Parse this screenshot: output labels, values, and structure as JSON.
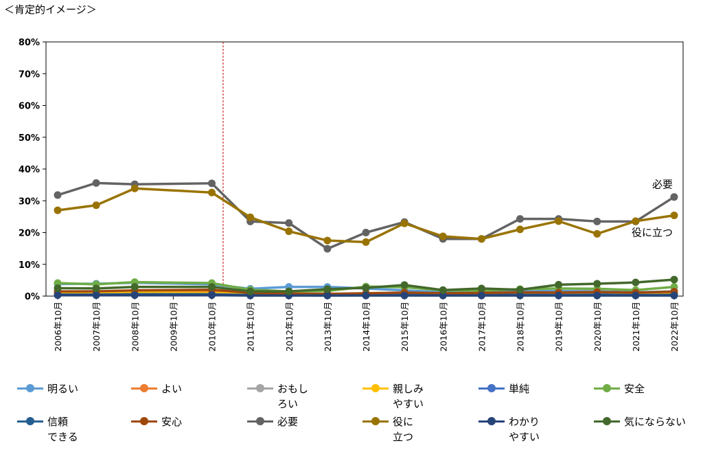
{
  "header": {
    "title": "＜肯定的イメージ＞"
  },
  "chart_data": {
    "type": "line",
    "title": "",
    "xlabel": "",
    "ylabel": "",
    "ylim": [
      0,
      80
    ],
    "y_ticks": [
      "0%",
      "10%",
      "20%",
      "30%",
      "40%",
      "50%",
      "60%",
      "70%",
      "80%"
    ],
    "categories": [
      "2006年10月",
      "2007年10月",
      "2008年10月",
      "2009年10月",
      "2010年10月",
      "2011年10月",
      "2012年10月",
      "2013年10月",
      "2014年10月",
      "2015年10月",
      "2016年10月",
      "2017年10月",
      "2018年10月",
      "2019年10月",
      "2020年10月",
      "2021年10月",
      "2022年10月"
    ],
    "grid": false,
    "legend_position": "bottom",
    "annotations": [
      {
        "text": "必要",
        "series": "必要"
      },
      {
        "text": "役に立つ",
        "series": "役に立つ"
      }
    ],
    "series": [
      {
        "name": "明るい",
        "color": "#5B9BD5",
        "values": [
          3.8,
          3.9,
          4.2,
          null,
          3.7,
          2.3,
          2.9,
          2.9,
          2.4,
          1.8,
          1.2,
          1.3,
          1.5,
          1.6,
          1.5,
          1.2,
          1.5
        ]
      },
      {
        "name": "よい",
        "color": "#ED7D31",
        "values": [
          1.2,
          1.1,
          1.3,
          null,
          1.4,
          0.8,
          0.7,
          0.6,
          0.8,
          0.9,
          0.8,
          0.7,
          0.9,
          0.8,
          0.9,
          0.8,
          1.0
        ]
      },
      {
        "name": "おもしろい",
        "color": "#A5A5A5",
        "values": [
          0.8,
          0.9,
          0.9,
          null,
          0.8,
          0.6,
          0.7,
          0.6,
          0.7,
          0.8,
          0.6,
          0.7,
          0.8,
          0.7,
          0.8,
          0.7,
          0.9
        ]
      },
      {
        "name": "親しみやすい",
        "color": "#FFC000",
        "values": [
          0.9,
          1.0,
          1.1,
          null,
          1.0,
          0.7,
          0.6,
          0.5,
          0.7,
          0.8,
          0.6,
          0.6,
          0.7,
          0.6,
          0.7,
          0.6,
          0.8
        ]
      },
      {
        "name": "単純",
        "color": "#4472C4",
        "values": [
          0.4,
          0.4,
          0.5,
          null,
          0.5,
          0.3,
          0.3,
          0.3,
          0.3,
          0.4,
          0.3,
          0.3,
          0.4,
          0.3,
          0.4,
          0.3,
          0.4
        ]
      },
      {
        "name": "安全",
        "color": "#70AD47",
        "values": [
          4.1,
          3.7,
          4.4,
          null,
          4.1,
          2.0,
          1.5,
          1.6,
          3.0,
          2.8,
          1.8,
          1.7,
          2.2,
          2.4,
          2.3,
          1.9,
          2.9
        ]
      },
      {
        "name": "信頼できる",
        "color": "#255E91",
        "values": [
          0.5,
          0.5,
          0.6,
          null,
          0.6,
          0.3,
          0.3,
          0.2,
          0.3,
          0.4,
          0.3,
          0.3,
          0.4,
          0.3,
          0.5,
          0.3,
          0.4
        ]
      },
      {
        "name": "安心",
        "color": "#9E480E",
        "values": [
          1.5,
          1.5,
          1.8,
          null,
          2.0,
          1.0,
          0.8,
          0.7,
          0.9,
          1.1,
          0.9,
          1.0,
          1.2,
          1.1,
          1.3,
          1.1,
          1.4
        ]
      },
      {
        "name": "必要",
        "color": "#636363",
        "values": [
          31.8,
          35.6,
          35.2,
          null,
          35.5,
          23.5,
          23.0,
          14.9,
          20.0,
          23.3,
          18.0,
          18.0,
          24.3,
          24.3,
          23.5,
          23.5,
          31.2
        ]
      },
      {
        "name": "役に立つ",
        "color": "#997300",
        "values": [
          27.0,
          28.6,
          33.9,
          null,
          32.6,
          24.8,
          20.4,
          17.5,
          17.0,
          22.9,
          18.8,
          18.0,
          21.0,
          23.6,
          19.6,
          23.6,
          25.4
        ]
      },
      {
        "name": "わかりやすい",
        "color": "#264478",
        "values": [
          0.3,
          0.3,
          0.3,
          null,
          0.3,
          0.2,
          0.2,
          0.2,
          0.2,
          0.2,
          0.2,
          0.2,
          0.2,
          0.2,
          0.2,
          0.2,
          0.2
        ]
      },
      {
        "name": "気にならない",
        "color": "#43682B",
        "values": [
          2.5,
          2.4,
          2.9,
          null,
          2.9,
          1.5,
          1.5,
          2.2,
          2.6,
          3.5,
          1.9,
          2.4,
          2.0,
          3.6,
          3.9,
          4.3,
          5.2
        ]
      }
    ]
  },
  "legend": {
    "items": [
      {
        "label": "明るい",
        "color": "#5B9BD5"
      },
      {
        "label": "よい",
        "color": "#ED7D31"
      },
      {
        "label": "おもし\nろい",
        "color": "#A5A5A5"
      },
      {
        "label": "親しみ\nやすい",
        "color": "#FFC000"
      },
      {
        "label": "単純",
        "color": "#4472C4"
      },
      {
        "label": "安全",
        "color": "#70AD47"
      },
      {
        "label": "信頼\nできる",
        "color": "#255E91"
      },
      {
        "label": "安心",
        "color": "#9E480E"
      },
      {
        "label": "必要",
        "color": "#636363"
      },
      {
        "label": "役に\n立つ",
        "color": "#997300"
      },
      {
        "label": "わかり\nやすい",
        "color": "#264478"
      },
      {
        "label": "気にならない",
        "color": "#43682B"
      }
    ]
  }
}
